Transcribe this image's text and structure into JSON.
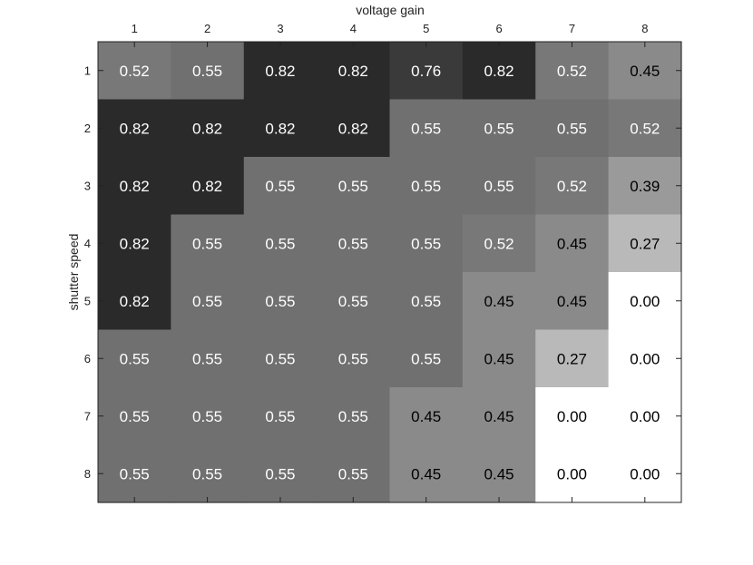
{
  "chart_data": {
    "type": "heatmap",
    "xlabel": "voltage gain",
    "ylabel": "shutter speed",
    "x_categories": [
      "1",
      "2",
      "3",
      "4",
      "5",
      "6",
      "7",
      "8"
    ],
    "y_categories": [
      "1",
      "2",
      "3",
      "4",
      "5",
      "6",
      "7",
      "8"
    ],
    "x_axis_position": "top",
    "y_axis_position": "left",
    "colormap": "gray (dark = high)",
    "grid": false,
    "values": [
      [
        0.52,
        0.55,
        0.82,
        0.82,
        0.76,
        0.82,
        0.52,
        0.45
      ],
      [
        0.82,
        0.82,
        0.82,
        0.82,
        0.55,
        0.55,
        0.55,
        0.52
      ],
      [
        0.82,
        0.82,
        0.55,
        0.55,
        0.55,
        0.55,
        0.52,
        0.39
      ],
      [
        0.82,
        0.55,
        0.55,
        0.55,
        0.55,
        0.52,
        0.45,
        0.27
      ],
      [
        0.82,
        0.55,
        0.55,
        0.55,
        0.55,
        0.45,
        0.45,
        0.0
      ],
      [
        0.55,
        0.55,
        0.55,
        0.55,
        0.55,
        0.45,
        0.27,
        0.0
      ],
      [
        0.55,
        0.55,
        0.55,
        0.55,
        0.45,
        0.45,
        0.0,
        0.0
      ],
      [
        0.55,
        0.55,
        0.55,
        0.55,
        0.45,
        0.45,
        0.0,
        0.0
      ]
    ],
    "cell_labels": [
      [
        "0.52",
        "0.55",
        "0.82",
        "0.82",
        "0.76",
        "0.82",
        "0.52",
        "0.45"
      ],
      [
        "0.82",
        "0.82",
        "0.82",
        "0.82",
        "0.55",
        "0.55",
        "0.55",
        "0.52"
      ],
      [
        "0.82",
        "0.82",
        "0.55",
        "0.55",
        "0.55",
        "0.55",
        "0.52",
        "0.39"
      ],
      [
        "0.82",
        "0.55",
        "0.55",
        "0.55",
        "0.55",
        "0.52",
        "0.45",
        "0.27"
      ],
      [
        "0.82",
        "0.55",
        "0.55",
        "0.55",
        "0.55",
        "0.45",
        "0.45",
        "0.00"
      ],
      [
        "0.55",
        "0.55",
        "0.55",
        "0.55",
        "0.55",
        "0.45",
        "0.27",
        "0.00"
      ],
      [
        "0.55",
        "0.55",
        "0.55",
        "0.55",
        "0.45",
        "0.45",
        "0.00",
        "0.00"
      ],
      [
        "0.55",
        "0.55",
        "0.55",
        "0.55",
        "0.45",
        "0.45",
        "0.00",
        "0.00"
      ]
    ],
    "colors": {
      "high": "#2a2a2a",
      "low": "#ffffff",
      "axis": "#222222"
    }
  }
}
